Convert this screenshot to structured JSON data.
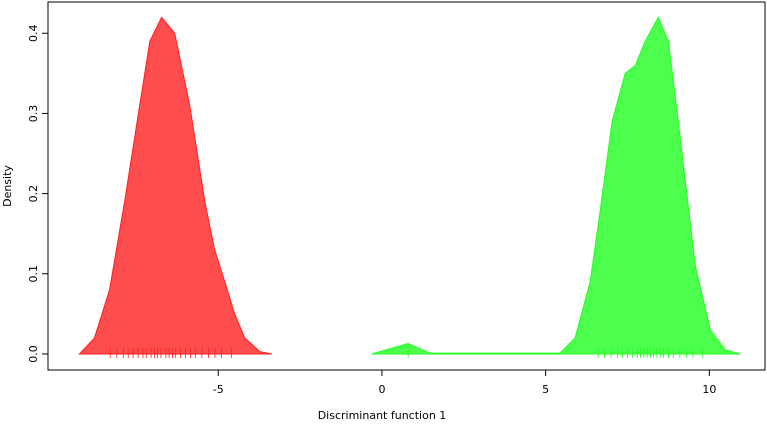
{
  "chart_data": {
    "type": "density",
    "xlabel": "Discriminant function 1",
    "ylabel": "Density",
    "xlim": [
      -10.2,
      11.7
    ],
    "ylim": [
      -0.02,
      0.439
    ],
    "xticks": [
      -5,
      0,
      5,
      10
    ],
    "yticks": [
      {
        "value": 0,
        "label": "0.0"
      },
      0.1,
      0.2,
      0.3,
      0.4
    ],
    "series": [
      {
        "color": "#ff2020",
        "x": [
          -9.24,
          -8.78,
          -8.32,
          -7.86,
          -7.4,
          -7.09,
          -6.73,
          -6.33,
          -5.87,
          -5.41,
          -5.11,
          -4.8,
          -4.5,
          -4.19,
          -3.73,
          -3.36
        ],
        "values": [
          0,
          0.02,
          0.08,
          0.19,
          0.31,
          0.39,
          0.42,
          0.4,
          0.31,
          0.19,
          0.13,
          0.09,
          0.05,
          0.02,
          0.003,
          0
        ],
        "rug": [
          -8.3,
          -8.1,
          -7.9,
          -7.75,
          -7.6,
          -7.45,
          -7.3,
          -7.2,
          -7.05,
          -6.95,
          -6.85,
          -6.75,
          -6.6,
          -6.5,
          -6.4,
          -6.3,
          -6.15,
          -6.0,
          -5.85,
          -5.7,
          -5.5,
          -5.3,
          -5.1,
          -4.9,
          -4.6
        ]
      },
      {
        "color": "#20ff20",
        "x": [
          -0.31,
          0.8,
          1.47,
          5.44,
          5.9,
          6.36,
          6.67,
          7.03,
          7.43,
          7.74,
          8.04,
          8.44,
          8.75,
          9.11,
          9.57,
          10.03,
          10.49,
          10.95
        ],
        "values": [
          0,
          0.013,
          0.001,
          0.001,
          0.02,
          0.09,
          0.18,
          0.29,
          0.35,
          0.36,
          0.39,
          0.42,
          0.39,
          0.27,
          0.11,
          0.03,
          0.005,
          0
        ],
        "rug": [
          0.8,
          6.6,
          6.8,
          7.0,
          7.2,
          7.35,
          7.5,
          7.65,
          7.8,
          7.9,
          8.0,
          8.1,
          8.2,
          8.3,
          8.4,
          8.5,
          8.6,
          8.75,
          8.9,
          9.1,
          9.3,
          9.5,
          9.8
        ]
      }
    ]
  }
}
